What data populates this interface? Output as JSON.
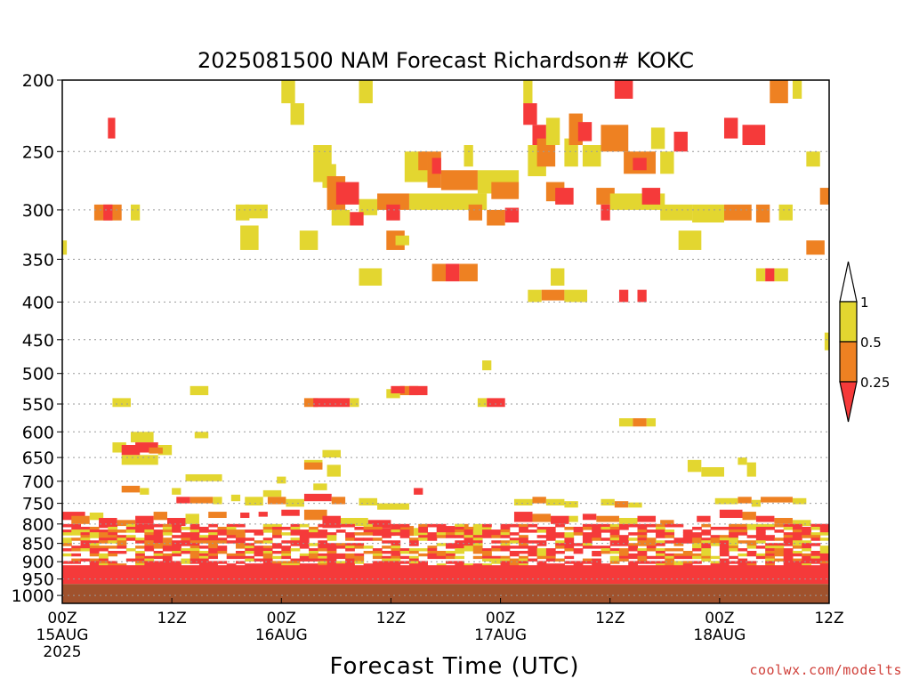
{
  "credit": "coolwx.com/modelts",
  "colors": {
    "below_025": "#f53a3a",
    "band_025_05": "#ee8122",
    "band_05_1": "#e3d630",
    "above_1": "#ffffff",
    "ground": "#a0522d",
    "grid": "#9a9a9a"
  },
  "chart_data": {
    "type": "heatmap",
    "title": "2025081500 NAM Forecast Richardson# KOKC",
    "xlabel": "Forecast Time (UTC)",
    "ylabel": "",
    "x_unit": "forecast hour",
    "xlim": [
      0,
      84
    ],
    "y_axis": "pressure (hPa), reversed, log-like",
    "ylim": [
      1025,
      200
    ],
    "y_ticks": [
      200,
      250,
      300,
      350,
      400,
      450,
      500,
      550,
      600,
      650,
      700,
      750,
      800,
      850,
      900,
      950,
      1000
    ],
    "x_ticks": [
      {
        "hour": 0,
        "lines": [
          "00Z",
          "15AUG",
          "2025"
        ]
      },
      {
        "hour": 12,
        "lines": [
          "12Z"
        ]
      },
      {
        "hour": 24,
        "lines": [
          "00Z",
          "16AUG"
        ]
      },
      {
        "hour": 36,
        "lines": [
          "12Z"
        ]
      },
      {
        "hour": 48,
        "lines": [
          "00Z",
          "17AUG"
        ]
      },
      {
        "hour": 60,
        "lines": [
          "12Z"
        ]
      },
      {
        "hour": 72,
        "lines": [
          "00Z",
          "18AUG"
        ]
      },
      {
        "hour": 84,
        "lines": [
          "12Z"
        ]
      }
    ],
    "legend": {
      "placement": "right",
      "labels": [
        "1",
        "0.5",
        "0.25"
      ],
      "bands": [
        {
          "range": "> 1",
          "color": "#ffffff"
        },
        {
          "range": "0.5 - 1",
          "color": "#e3d630"
        },
        {
          "range": "0.25 - 0.5",
          "color": "#ee8122"
        },
        {
          "range": "< 0.25",
          "color": "#f53a3a"
        }
      ]
    },
    "ground_level_hpa": 965,
    "cells": [
      [
        24.0,
        25.5,
        200,
        215,
        "y"
      ],
      [
        25.0,
        26.5,
        215,
        230,
        "y"
      ],
      [
        32.5,
        34.0,
        200,
        215,
        "y"
      ],
      [
        50.5,
        51.5,
        200,
        215,
        "y"
      ],
      [
        50.5,
        52.0,
        215,
        230,
        "r"
      ],
      [
        51.5,
        53.0,
        230,
        245,
        "r"
      ],
      [
        60.5,
        62.5,
        200,
        212,
        "r"
      ],
      [
        77.5,
        79.5,
        200,
        215,
        "o"
      ],
      [
        80.0,
        81.0,
        200,
        212,
        "y"
      ],
      [
        5.0,
        5.8,
        225,
        240,
        "r"
      ],
      [
        27.5,
        29.5,
        245,
        275,
        "y"
      ],
      [
        28.5,
        30.0,
        260,
        280,
        "y"
      ],
      [
        37.5,
        40.0,
        250,
        275,
        "y"
      ],
      [
        39.0,
        40.0,
        250,
        265,
        "o"
      ],
      [
        40.0,
        41.5,
        250,
        280,
        "o"
      ],
      [
        40.5,
        41.5,
        255,
        268,
        "r"
      ],
      [
        41.5,
        45.5,
        265,
        282,
        "o"
      ],
      [
        44.0,
        45.0,
        245,
        262,
        "y"
      ],
      [
        45.5,
        50.0,
        265,
        285,
        "y"
      ],
      [
        47.0,
        50.0,
        275,
        290,
        "o"
      ],
      [
        51.0,
        53.0,
        245,
        270,
        "y"
      ],
      [
        52.0,
        54.0,
        240,
        262,
        "o"
      ],
      [
        53.0,
        54.5,
        225,
        245,
        "y"
      ],
      [
        55.0,
        56.5,
        240,
        262,
        "y"
      ],
      [
        55.5,
        57.0,
        222,
        245,
        "o"
      ],
      [
        56.5,
        58.0,
        228,
        242,
        "r"
      ],
      [
        57.0,
        59.0,
        245,
        262,
        "y"
      ],
      [
        59.0,
        62.0,
        230,
        250,
        "o"
      ],
      [
        61.5,
        65.0,
        250,
        268,
        "o"
      ],
      [
        62.5,
        64.0,
        255,
        265,
        "r"
      ],
      [
        64.5,
        66.0,
        232,
        248,
        "y"
      ],
      [
        65.5,
        67.0,
        250,
        268,
        "y"
      ],
      [
        67.0,
        68.5,
        235,
        250,
        "r"
      ],
      [
        72.5,
        74.0,
        225,
        240,
        "r"
      ],
      [
        74.5,
        77.0,
        230,
        245,
        "r"
      ],
      [
        81.5,
        83.0,
        250,
        262,
        "y"
      ],
      [
        29.0,
        31.0,
        270,
        300,
        "o"
      ],
      [
        30.0,
        32.5,
        275,
        295,
        "r"
      ],
      [
        32.5,
        34.5,
        290,
        305,
        "y"
      ],
      [
        34.5,
        38.0,
        285,
        300,
        "o"
      ],
      [
        35.5,
        37.0,
        295,
        310,
        "r"
      ],
      [
        38.0,
        42.0,
        285,
        300,
        "y"
      ],
      [
        42.0,
        46.5,
        285,
        300,
        "y"
      ],
      [
        44.5,
        46.0,
        295,
        310,
        "o"
      ],
      [
        46.5,
        48.5,
        300,
        315,
        "o"
      ],
      [
        48.5,
        50.0,
        298,
        312,
        "r"
      ],
      [
        53.0,
        55.0,
        275,
        292,
        "o"
      ],
      [
        54.0,
        56.0,
        280,
        295,
        "r"
      ],
      [
        58.5,
        60.5,
        280,
        295,
        "o"
      ],
      [
        60.0,
        66.0,
        285,
        300,
        "y"
      ],
      [
        63.5,
        65.5,
        280,
        295,
        "r"
      ],
      [
        65.5,
        69.0,
        295,
        310,
        "y"
      ],
      [
        69.0,
        72.5,
        295,
        312,
        "y"
      ],
      [
        72.5,
        75.5,
        295,
        310,
        "o"
      ],
      [
        76.0,
        77.5,
        295,
        312,
        "o"
      ],
      [
        78.5,
        80.0,
        295,
        310,
        "y"
      ],
      [
        83.0,
        84.0,
        280,
        295,
        "o"
      ],
      [
        19.0,
        20.5,
        295,
        310,
        "y"
      ],
      [
        20.0,
        22.5,
        295,
        308,
        "y"
      ],
      [
        3.5,
        6.5,
        295,
        310,
        "o"
      ],
      [
        4.5,
        5.5,
        295,
        310,
        "r"
      ],
      [
        7.5,
        8.5,
        295,
        310,
        "y"
      ],
      [
        59.0,
        60.0,
        295,
        310,
        "r"
      ],
      [
        29.5,
        31.5,
        300,
        315,
        "y"
      ],
      [
        31.5,
        33.0,
        302,
        315,
        "r"
      ],
      [
        19.5,
        21.5,
        315,
        340,
        "y"
      ],
      [
        26.0,
        28.0,
        320,
        340,
        "y"
      ],
      [
        35.5,
        37.5,
        320,
        340,
        "o"
      ],
      [
        36.5,
        38.0,
        325,
        335,
        "y"
      ],
      [
        67.5,
        70.0,
        320,
        340,
        "y"
      ],
      [
        81.5,
        83.5,
        330,
        345,
        "o"
      ],
      [
        0.0,
        0.5,
        330,
        345,
        "y"
      ],
      [
        32.5,
        35.0,
        360,
        380,
        "y"
      ],
      [
        40.5,
        42.0,
        355,
        375,
        "o"
      ],
      [
        42.0,
        43.5,
        355,
        375,
        "r"
      ],
      [
        43.5,
        45.5,
        355,
        375,
        "o"
      ],
      [
        53.5,
        55.0,
        360,
        380,
        "y"
      ],
      [
        76.0,
        77.0,
        360,
        375,
        "y"
      ],
      [
        77.0,
        78.0,
        360,
        375,
        "r"
      ],
      [
        78.0,
        79.5,
        360,
        375,
        "y"
      ],
      [
        51.0,
        52.5,
        385,
        400,
        "y"
      ],
      [
        52.5,
        55.0,
        385,
        398,
        "o"
      ],
      [
        55.0,
        57.5,
        385,
        400,
        "y"
      ],
      [
        61.0,
        62.0,
        385,
        400,
        "r"
      ],
      [
        63.0,
        64.0,
        385,
        400,
        "r"
      ],
      [
        83.5,
        84.0,
        440,
        465,
        "y"
      ],
      [
        46.0,
        47.0,
        480,
        495,
        "y"
      ],
      [
        14.0,
        16.0,
        520,
        535,
        "y"
      ],
      [
        35.5,
        37.0,
        525,
        540,
        "y"
      ],
      [
        37.0,
        39.0,
        520,
        535,
        "o"
      ],
      [
        38.0,
        40.0,
        520,
        535,
        "r"
      ],
      [
        36.0,
        37.5,
        520,
        532,
        "r"
      ],
      [
        5.5,
        7.5,
        540,
        555,
        "y"
      ],
      [
        26.5,
        28.0,
        540,
        555,
        "o"
      ],
      [
        27.5,
        31.5,
        540,
        555,
        "r"
      ],
      [
        31.5,
        32.5,
        540,
        555,
        "y"
      ],
      [
        45.5,
        46.5,
        540,
        555,
        "y"
      ],
      [
        46.5,
        48.5,
        540,
        555,
        "r"
      ],
      [
        61.0,
        62.5,
        575,
        590,
        "y"
      ],
      [
        62.5,
        64.0,
        575,
        590,
        "o"
      ],
      [
        64.0,
        65.0,
        575,
        590,
        "y"
      ],
      [
        14.5,
        16.0,
        600,
        612,
        "y"
      ],
      [
        7.5,
        10.0,
        600,
        620,
        "y"
      ],
      [
        5.5,
        7.0,
        620,
        640,
        "y"
      ],
      [
        6.5,
        8.5,
        625,
        645,
        "r"
      ],
      [
        8.0,
        10.5,
        620,
        640,
        "r"
      ],
      [
        10.5,
        12.0,
        625,
        645,
        "y"
      ],
      [
        9.5,
        11.0,
        630,
        642,
        "o"
      ],
      [
        6.5,
        10.5,
        645,
        665,
        "y"
      ],
      [
        28.5,
        30.5,
        635,
        650,
        "y"
      ],
      [
        26.5,
        28.5,
        655,
        670,
        "y"
      ],
      [
        26.5,
        28.5,
        660,
        675,
        "o"
      ],
      [
        29.0,
        30.5,
        665,
        690,
        "y"
      ],
      [
        68.5,
        70.0,
        655,
        680,
        "y"
      ],
      [
        70.0,
        72.5,
        670,
        690,
        "y"
      ],
      [
        74.0,
        75.0,
        650,
        665,
        "y"
      ],
      [
        75.0,
        76.0,
        660,
        690,
        "y"
      ],
      [
        13.5,
        17.5,
        685,
        700,
        "y"
      ],
      [
        23.5,
        24.5,
        690,
        705,
        "y"
      ],
      [
        6.5,
        8.5,
        710,
        725,
        "o"
      ],
      [
        8.5,
        9.5,
        715,
        730,
        "y"
      ],
      [
        12.0,
        13.0,
        715,
        730,
        "y"
      ],
      [
        27.5,
        29.0,
        705,
        720,
        "y"
      ],
      [
        38.5,
        39.5,
        715,
        730,
        "r"
      ],
      [
        22.0,
        24.0,
        720,
        735,
        "y"
      ],
      [
        12.5,
        14.0,
        735,
        750,
        "r"
      ],
      [
        14.0,
        16.5,
        735,
        750,
        "o"
      ],
      [
        16.5,
        17.5,
        735,
        752,
        "y"
      ],
      [
        18.5,
        19.5,
        730,
        745,
        "y"
      ],
      [
        20.0,
        22.0,
        735,
        755,
        "y"
      ],
      [
        22.5,
        24.5,
        735,
        752,
        "o"
      ],
      [
        24.5,
        26.5,
        740,
        758,
        "y"
      ],
      [
        26.5,
        29.5,
        728,
        745,
        "r"
      ],
      [
        29.5,
        31.0,
        735,
        752,
        "o"
      ],
      [
        32.5,
        34.5,
        738,
        755,
        "y"
      ],
      [
        34.5,
        38.0,
        750,
        765,
        "y"
      ],
      [
        49.5,
        51.5,
        740,
        755,
        "y"
      ],
      [
        51.5,
        53.0,
        735,
        750,
        "o"
      ],
      [
        53.0,
        55.0,
        740,
        755,
        "y"
      ],
      [
        55.0,
        56.5,
        745,
        760,
        "y"
      ],
      [
        59.0,
        60.5,
        740,
        755,
        "y"
      ],
      [
        60.5,
        62.0,
        745,
        760,
        "o"
      ],
      [
        62.0,
        63.5,
        748,
        760,
        "y"
      ],
      [
        71.5,
        74.0,
        738,
        752,
        "y"
      ],
      [
        74.0,
        75.5,
        735,
        750,
        "o"
      ],
      [
        75.5,
        76.5,
        742,
        758,
        "y"
      ],
      [
        76.5,
        80.0,
        735,
        748,
        "o"
      ],
      [
        80.0,
        81.5,
        738,
        752,
        "y"
      ],
      [
        0.0,
        2.5,
        770,
        790,
        "r"
      ],
      [
        1.0,
        3.0,
        780,
        800,
        "o"
      ],
      [
        3.0,
        4.5,
        772,
        790,
        "y"
      ],
      [
        4.0,
        6.0,
        785,
        810,
        "r"
      ],
      [
        6.0,
        8.0,
        790,
        805,
        "o"
      ],
      [
        8.0,
        10.0,
        780,
        800,
        "r"
      ],
      [
        10.0,
        11.5,
        770,
        790,
        "o"
      ],
      [
        11.5,
        13.5,
        785,
        805,
        "r"
      ],
      [
        13.5,
        15.0,
        775,
        800,
        "y"
      ],
      [
        16.0,
        18.0,
        770,
        785,
        "o"
      ],
      [
        19.5,
        20.5,
        772,
        785,
        "r"
      ],
      [
        21.5,
        22.5,
        770,
        782,
        "r"
      ],
      [
        24.0,
        26.0,
        765,
        780,
        "r"
      ],
      [
        26.5,
        29.0,
        765,
        790,
        "o"
      ],
      [
        28.5,
        30.5,
        780,
        810,
        "r"
      ],
      [
        30.5,
        33.5,
        785,
        805,
        "y"
      ],
      [
        33.5,
        36.0,
        790,
        810,
        "r"
      ],
      [
        36.0,
        38.5,
        805,
        830,
        "o"
      ],
      [
        34.0,
        36.5,
        810,
        830,
        "r"
      ],
      [
        38.5,
        40.0,
        810,
        830,
        "y"
      ],
      [
        41.5,
        43.5,
        805,
        825,
        "r"
      ],
      [
        43.0,
        44.5,
        800,
        815,
        "o"
      ],
      [
        45.0,
        47.0,
        805,
        825,
        "y"
      ],
      [
        47.0,
        49.0,
        815,
        835,
        "r"
      ],
      [
        49.5,
        51.5,
        770,
        795,
        "r"
      ],
      [
        51.5,
        53.5,
        775,
        795,
        "o"
      ],
      [
        53.5,
        55.5,
        780,
        800,
        "r"
      ],
      [
        55.5,
        56.5,
        780,
        795,
        "y"
      ],
      [
        57.0,
        58.5,
        775,
        790,
        "r"
      ],
      [
        58.5,
        61.0,
        780,
        795,
        "o"
      ],
      [
        61.0,
        63.0,
        785,
        800,
        "y"
      ],
      [
        63.0,
        65.0,
        780,
        795,
        "r"
      ],
      [
        65.5,
        67.0,
        790,
        805,
        "o"
      ],
      [
        69.5,
        71.0,
        780,
        795,
        "r"
      ],
      [
        72.0,
        74.5,
        765,
        785,
        "r"
      ],
      [
        74.5,
        76.0,
        770,
        790,
        "o"
      ],
      [
        76.0,
        78.0,
        780,
        795,
        "r"
      ],
      [
        78.0,
        80.0,
        785,
        800,
        "o"
      ],
      [
        80.0,
        82.0,
        790,
        805,
        "y"
      ],
      [
        82.0,
        84.0,
        800,
        815,
        "r"
      ],
      [
        0.0,
        84.0,
        800,
        955,
        "mix"
      ],
      [
        0.0,
        84.0,
        910,
        965,
        "r"
      ]
    ]
  }
}
